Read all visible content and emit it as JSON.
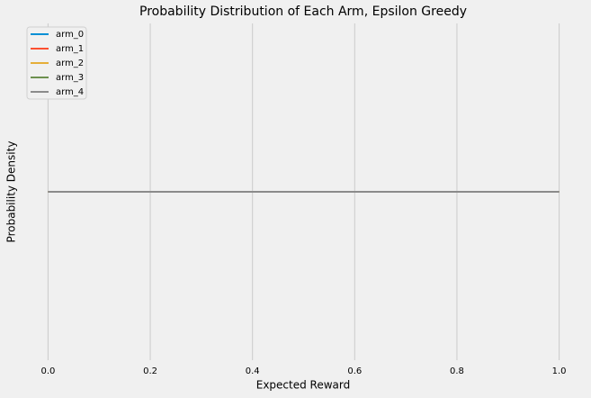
{
  "chart_data": {
    "type": "line",
    "title": "Probability Distribution of Each Arm, Epsilon Greedy",
    "x_label": "Expected Reward",
    "y_label": "Probability Density",
    "x": [
      0,
      1
    ],
    "series": [
      {
        "name": "arm_0",
        "color": "#008fd5",
        "values": [
          1,
          1
        ]
      },
      {
        "name": "arm_1",
        "color": "#fc4f30",
        "values": [
          1,
          1
        ]
      },
      {
        "name": "arm_2",
        "color": "#e5ae38",
        "values": [
          1,
          1
        ]
      },
      {
        "name": "arm_3",
        "color": "#6d904f",
        "values": [
          1,
          1
        ]
      },
      {
        "name": "arm_4",
        "color": "#8b8b8b",
        "values": [
          1,
          1
        ]
      }
    ],
    "xlim": [
      -0.05,
      1.05
    ],
    "xticks": [
      {
        "value": 0,
        "label": "0.0"
      },
      {
        "value": 0.2,
        "label": "0.2"
      },
      {
        "value": 0.4,
        "label": "0.4"
      },
      {
        "value": 0.6,
        "label": "0.6"
      },
      {
        "value": 0.8,
        "label": "0.8"
      },
      {
        "value": 1,
        "label": "1.0"
      }
    ],
    "ylim": [
      0.945,
      1.055
    ],
    "grid": true,
    "legend": "upper-left"
  }
}
